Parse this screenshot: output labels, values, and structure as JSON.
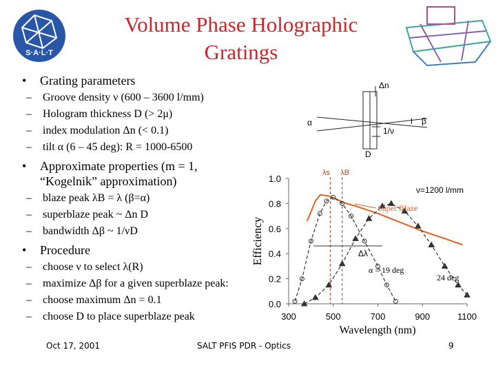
{
  "header": {
    "title": "Volume Phase Holographic Gratings",
    "logo": "S·A·L·T"
  },
  "bullets": [
    {
      "text": "Grating parameters",
      "items": [
        "Groove density ν (600 – 3600 l/mm)",
        "Hologram thickness D (> 2μ)",
        "index modulation Δn (< 0.1)",
        "tilt α (6 – 45 deg): R = 1000-6500"
      ]
    },
    {
      "text": "Approximate properties (m = 1, “Kogelnik” approximation)",
      "items": [
        "blaze peak λB = λ (β=α)",
        "superblaze peak ~ Δn D",
        "bandwidth Δβ ~ 1/νD"
      ]
    },
    {
      "text": "Procedure",
      "items": [
        "choose ν to select λ(R)",
        "maximize Δβ for a given superblaze peak:",
        "choose maximum Δn = 0.1",
        "choose D to place superblaze peak"
      ]
    }
  ],
  "diagram": {
    "labels": [
      "Δn",
      "α",
      "l",
      "β",
      "1/ν",
      "D"
    ]
  },
  "chart_data": {
    "type": "line",
    "xlabel": "Wavelength (nm)",
    "ylabel": "Efficiency",
    "xlim": [
      300,
      1100
    ],
    "xticks": [
      300,
      500,
      700,
      900,
      1100
    ],
    "ylim": [
      0,
      1.0
    ],
    "yticks": [
      {
        "value": 0,
        "label": "0.0"
      },
      {
        "value": 0.2,
        "label": "0.2"
      },
      {
        "value": 0.4,
        "label": "0.4"
      },
      {
        "value": 0.6,
        "label": "0.6"
      },
      {
        "value": 0.8,
        "label": "0.8"
      },
      {
        "value": 1.0,
        "label": "1.0"
      }
    ],
    "series": [
      {
        "name": "Super Blaze",
        "color": "#e0601e",
        "marker": "none",
        "dash": false,
        "x": [
          383,
          420,
          442,
          480,
          520,
          560,
          600,
          700,
          800,
          900,
          1000,
          1080
        ],
        "values": [
          0.66,
          0.82,
          0.87,
          0.86,
          0.83,
          0.8,
          0.78,
          0.72,
          0.65,
          0.58,
          0.52,
          0.47
        ]
      },
      {
        "name": "α = 19 deg",
        "color": "#333333",
        "marker": "circle",
        "dash": true,
        "x": [
          328,
          360,
          400,
          440,
          470,
          500,
          540,
          580,
          640,
          700,
          740,
          780
        ],
        "values": [
          0.02,
          0.2,
          0.5,
          0.72,
          0.82,
          0.85,
          0.8,
          0.7,
          0.5,
          0.3,
          0.15,
          0.02
        ]
      },
      {
        "name": "24 deg",
        "color": "#333333",
        "marker": "triangle",
        "dash": true,
        "x": [
          370,
          420,
          480,
          540,
          600,
          660,
          720,
          760,
          820,
          880,
          940,
          1000,
          1060,
          1100
        ],
        "values": [
          0.0,
          0.05,
          0.15,
          0.32,
          0.52,
          0.68,
          0.78,
          0.8,
          0.74,
          0.62,
          0.47,
          0.3,
          0.15,
          0.07
        ]
      }
    ],
    "vlines": [
      {
        "label": "λs",
        "x": 487,
        "color": "#e0601e"
      },
      {
        "label": "λB",
        "x": 540,
        "color": "#888888"
      }
    ],
    "annotations": [
      "ν=1200 l/mm",
      "Δλ"
    ]
  },
  "footer": {
    "date": "Oct 17, 2001",
    "center": "SALT PFIS PDR - Optics",
    "page": "9"
  }
}
